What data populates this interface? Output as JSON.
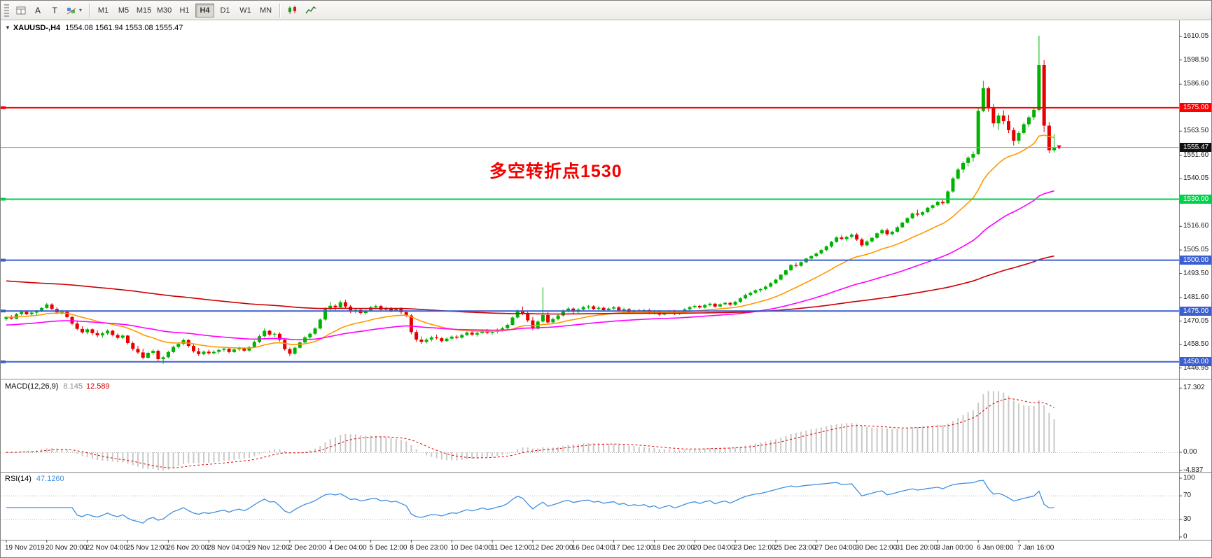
{
  "toolbar": {
    "cursor_label": "A",
    "text_label": "T",
    "timeframes": [
      "M1",
      "M5",
      "M15",
      "M30",
      "H1",
      "H4",
      "D1",
      "W1",
      "MN"
    ],
    "active_timeframe": "H4"
  },
  "chart": {
    "symbol_timeframe": "XAUUSD-,H4",
    "ohlc": "1554.08 1561.94 1553.08 1555.47",
    "annotation": {
      "text": "多空转折点1530",
      "color": "#f30000"
    },
    "current_price": {
      "label": "1555.47",
      "price": 1555.47,
      "color": "#111111"
    },
    "levels": [
      {
        "label": "1575.00",
        "price": 1575.0,
        "color": "#ff0000",
        "width": 2
      },
      {
        "label": "1530.00",
        "price": 1530.0,
        "color": "#00d24b",
        "width": 2
      },
      {
        "label": "1500.00",
        "price": 1500.0,
        "color": "#3c5fd0",
        "width": 2
      },
      {
        "label": "1475.00",
        "price": 1475.0,
        "color": "#3c5fd0",
        "width": 2
      },
      {
        "label": "1450.00",
        "price": 1450.0,
        "color": "#3c5fd0",
        "width": 2
      }
    ],
    "price_axis": {
      "labels": [
        "1610.05",
        "1598.50",
        "1586.60",
        "1563.50",
        "1551.60",
        "1540.05",
        "1528.50",
        "1516.60",
        "1505.05",
        "1493.50",
        "1481.60",
        "1470.05",
        "1458.50",
        "1446.95"
      ]
    }
  },
  "macd": {
    "name": "MACD(12,26,9)",
    "value": "8.145",
    "signal": "12.589",
    "axis": [
      "17.302",
      "0.00",
      "-4.837"
    ]
  },
  "rsi": {
    "name": "RSI(14)",
    "value": "47.1260",
    "axis": [
      "100",
      "70",
      "30",
      "0"
    ]
  },
  "time_axis": {
    "labels": [
      "19 Nov 2019",
      "20 Nov 20:00",
      "22 Nov 04:00",
      "25 Nov 12:00",
      "26 Nov 20:00",
      "28 Nov 04:00",
      "29 Nov 12:00",
      "2 Dec 20:00",
      "4 Dec 04:00",
      "5 Dec 12:00",
      "8 Dec 23:00",
      "10 Dec 04:00",
      "11 Dec 12:00",
      "12 Dec 20:00",
      "16 Dec 04:00",
      "17 Dec 12:00",
      "18 Dec 20:00",
      "20 Dec 04:00",
      "23 Dec 12:00",
      "25 Dec 23:00",
      "27 Dec 04:00",
      "30 Dec 12:00",
      "31 Dec 20:00",
      "3 Jan 00:00",
      "6 Jan 08:00",
      "7 Jan 16:00"
    ]
  },
  "chart_data": {
    "type": "candlestick",
    "symbol": "XAUUSD-",
    "timeframe": "H4",
    "title": "XAUUSD-,H4 1554.08 1561.94 1553.08 1555.47",
    "colors": {
      "up": "#00b300",
      "down": "#e80000"
    },
    "overlays": [
      {
        "name": "ma-fast-orange",
        "period": 20,
        "seed": null,
        "color": "#ff9900"
      },
      {
        "name": "ma-mid-magenta",
        "period": 60,
        "seed": 1468,
        "color": "#ff00ff"
      },
      {
        "name": "ma-slow-red",
        "period": 190,
        "seed": 1490,
        "color": "#cc0000"
      }
    ],
    "indicators": {
      "macd": {
        "fast": 12,
        "slow": 26,
        "signal": 9,
        "ymax": 17.302,
        "ymin": -4.837
      },
      "rsi": {
        "period": 14,
        "levels": [
          70,
          30
        ]
      }
    },
    "candles": [
      [
        1471.0,
        1472.5,
        1470.2,
        1472.0
      ],
      [
        1472.0,
        1473.0,
        1470.8,
        1471.2
      ],
      [
        1471.2,
        1474.0,
        1471.0,
        1473.5
      ],
      [
        1473.5,
        1475.0,
        1472.8,
        1474.6
      ],
      [
        1474.6,
        1475.2,
        1473.0,
        1473.4
      ],
      [
        1473.4,
        1474.8,
        1472.6,
        1474.2
      ],
      [
        1474.2,
        1475.5,
        1473.0,
        1475.0
      ],
      [
        1475.0,
        1477.0,
        1474.4,
        1476.5
      ],
      [
        1476.5,
        1479.0,
        1476.0,
        1478.2
      ],
      [
        1478.2,
        1478.8,
        1475.5,
        1476.0
      ],
      [
        1476.0,
        1476.8,
        1473.5,
        1474.3
      ],
      [
        1474.3,
        1475.6,
        1473.2,
        1474.6
      ],
      [
        1474.6,
        1475.0,
        1471.5,
        1472.0
      ],
      [
        1472.0,
        1472.6,
        1468.0,
        1468.8
      ],
      [
        1468.8,
        1470.0,
        1465.5,
        1466.2
      ],
      [
        1466.2,
        1467.5,
        1463.8,
        1464.5
      ],
      [
        1464.5,
        1466.8,
        1463.5,
        1466.0
      ],
      [
        1466.0,
        1466.5,
        1463.0,
        1464.1
      ],
      [
        1464.1,
        1465.5,
        1462.0,
        1463.0
      ],
      [
        1463.0,
        1464.8,
        1461.8,
        1464.0
      ],
      [
        1464.0,
        1466.0,
        1463.2,
        1465.3
      ],
      [
        1465.3,
        1465.8,
        1462.5,
        1463.2
      ],
      [
        1463.2,
        1464.0,
        1461.0,
        1461.8
      ],
      [
        1461.8,
        1463.5,
        1461.2,
        1462.9
      ],
      [
        1462.9,
        1463.2,
        1458.5,
        1459.2
      ],
      [
        1459.2,
        1460.0,
        1455.5,
        1456.3
      ],
      [
        1456.3,
        1457.8,
        1453.8,
        1454.6
      ],
      [
        1454.6,
        1456.5,
        1451.2,
        1452.0
      ],
      [
        1452.0,
        1455.0,
        1451.5,
        1454.4
      ],
      [
        1454.4,
        1456.2,
        1453.5,
        1455.4
      ],
      [
        1455.4,
        1456.0,
        1450.5,
        1451.3
      ],
      [
        1451.3,
        1452.8,
        1449.0,
        1452.2
      ],
      [
        1452.2,
        1455.5,
        1451.8,
        1454.8
      ],
      [
        1454.8,
        1458.0,
        1454.2,
        1457.3
      ],
      [
        1457.3,
        1459.5,
        1456.5,
        1458.8
      ],
      [
        1458.8,
        1461.5,
        1458.0,
        1460.7
      ],
      [
        1460.7,
        1461.2,
        1457.0,
        1457.8
      ],
      [
        1457.8,
        1458.5,
        1454.5,
        1455.2
      ],
      [
        1455.2,
        1456.8,
        1453.0,
        1453.8
      ],
      [
        1453.8,
        1455.6,
        1453.2,
        1455.0
      ],
      [
        1455.0,
        1456.0,
        1453.5,
        1454.2
      ],
      [
        1454.2,
        1455.8,
        1453.6,
        1454.9
      ],
      [
        1454.9,
        1456.5,
        1454.0,
        1455.8
      ],
      [
        1455.8,
        1457.2,
        1455.0,
        1456.4
      ],
      [
        1456.4,
        1457.0,
        1454.2,
        1454.8
      ],
      [
        1454.8,
        1456.6,
        1454.4,
        1456.1
      ],
      [
        1456.1,
        1457.5,
        1455.2,
        1456.8
      ],
      [
        1456.8,
        1457.2,
        1454.8,
        1455.5
      ],
      [
        1455.5,
        1457.8,
        1455.0,
        1457.2
      ],
      [
        1457.2,
        1460.5,
        1456.8,
        1459.8
      ],
      [
        1459.8,
        1463.5,
        1459.2,
        1462.6
      ],
      [
        1462.6,
        1466.4,
        1462.0,
        1465.3
      ],
      [
        1465.3,
        1465.8,
        1462.5,
        1463.4
      ],
      [
        1463.4,
        1464.6,
        1462.2,
        1463.8
      ],
      [
        1463.8,
        1464.5,
        1460.0,
        1460.8
      ],
      [
        1460.8,
        1461.5,
        1455.5,
        1456.2
      ],
      [
        1456.2,
        1457.0,
        1452.8,
        1454.0
      ],
      [
        1454.0,
        1457.5,
        1453.4,
        1456.9
      ],
      [
        1456.9,
        1460.2,
        1456.4,
        1459.5
      ],
      [
        1459.5,
        1462.8,
        1459.0,
        1462.0
      ],
      [
        1462.0,
        1464.5,
        1461.2,
        1463.8
      ],
      [
        1463.8,
        1467.0,
        1463.2,
        1466.4
      ],
      [
        1466.4,
        1471.5,
        1466.0,
        1470.8
      ],
      [
        1470.8,
        1476.8,
        1470.2,
        1475.9
      ],
      [
        1475.9,
        1479.5,
        1475.0,
        1477.6
      ],
      [
        1477.6,
        1478.4,
        1475.2,
        1476.8
      ],
      [
        1476.8,
        1480.2,
        1476.2,
        1479.3
      ],
      [
        1479.3,
        1480.5,
        1476.5,
        1477.2
      ],
      [
        1477.2,
        1478.0,
        1474.0,
        1474.8
      ],
      [
        1474.8,
        1476.5,
        1473.8,
        1475.6
      ],
      [
        1475.6,
        1476.2,
        1473.2,
        1474.0
      ],
      [
        1474.0,
        1475.8,
        1473.4,
        1475.1
      ],
      [
        1475.1,
        1477.5,
        1474.6,
        1476.8
      ],
      [
        1476.8,
        1478.2,
        1475.8,
        1477.4
      ],
      [
        1477.4,
        1478.0,
        1475.0,
        1475.6
      ],
      [
        1475.6,
        1477.2,
        1474.8,
        1476.5
      ],
      [
        1476.5,
        1477.0,
        1474.4,
        1475.2
      ],
      [
        1475.2,
        1476.6,
        1474.6,
        1476.0
      ],
      [
        1476.0,
        1476.8,
        1473.5,
        1474.4
      ],
      [
        1474.4,
        1475.2,
        1472.0,
        1472.8
      ],
      [
        1472.8,
        1473.5,
        1463.5,
        1464.6
      ],
      [
        1464.6,
        1465.8,
        1459.8,
        1460.9
      ],
      [
        1460.9,
        1462.5,
        1458.8,
        1459.8
      ],
      [
        1459.8,
        1461.6,
        1459.0,
        1460.9
      ],
      [
        1460.9,
        1462.8,
        1460.0,
        1462.0
      ],
      [
        1462.0,
        1463.4,
        1461.0,
        1461.6
      ],
      [
        1461.6,
        1462.2,
        1459.5,
        1460.2
      ],
      [
        1460.2,
        1462.0,
        1459.8,
        1461.4
      ],
      [
        1461.4,
        1463.0,
        1460.8,
        1462.4
      ],
      [
        1462.4,
        1463.2,
        1461.2,
        1461.9
      ],
      [
        1461.9,
        1463.8,
        1461.4,
        1463.2
      ],
      [
        1463.2,
        1465.0,
        1462.6,
        1464.4
      ],
      [
        1464.4,
        1465.2,
        1462.8,
        1463.4
      ],
      [
        1463.4,
        1464.8,
        1462.4,
        1464.2
      ],
      [
        1464.2,
        1466.0,
        1463.8,
        1465.4
      ],
      [
        1465.4,
        1466.2,
        1463.6,
        1464.3
      ],
      [
        1464.3,
        1465.5,
        1463.4,
        1464.8
      ],
      [
        1464.8,
        1466.4,
        1464.0,
        1465.8
      ],
      [
        1465.8,
        1467.2,
        1465.0,
        1466.5
      ],
      [
        1466.5,
        1468.8,
        1466.0,
        1468.2
      ],
      [
        1468.2,
        1472.5,
        1467.8,
        1471.8
      ],
      [
        1471.8,
        1475.8,
        1471.2,
        1475.0
      ],
      [
        1475.0,
        1477.2,
        1473.0,
        1474.0
      ],
      [
        1474.0,
        1474.8,
        1469.5,
        1470.4
      ],
      [
        1470.4,
        1472.0,
        1465.5,
        1466.3
      ],
      [
        1466.3,
        1470.5,
        1465.8,
        1469.8
      ],
      [
        1469.8,
        1486.6,
        1469.2,
        1473.0
      ],
      [
        1473.0,
        1474.5,
        1468.5,
        1469.4
      ],
      [
        1469.4,
        1471.8,
        1468.8,
        1471.0
      ],
      [
        1471.0,
        1473.5,
        1470.4,
        1472.8
      ],
      [
        1472.8,
        1475.8,
        1472.2,
        1475.2
      ],
      [
        1475.2,
        1477.0,
        1474.4,
        1476.2
      ],
      [
        1476.2,
        1476.8,
        1473.8,
        1474.6
      ],
      [
        1474.6,
        1476.4,
        1474.0,
        1475.7
      ],
      [
        1475.7,
        1477.6,
        1475.2,
        1476.9
      ],
      [
        1476.9,
        1478.0,
        1476.0,
        1477.3
      ],
      [
        1477.3,
        1477.9,
        1475.4,
        1476.0
      ],
      [
        1476.0,
        1477.4,
        1475.3,
        1476.6
      ],
      [
        1476.6,
        1477.2,
        1474.8,
        1475.4
      ],
      [
        1475.4,
        1476.8,
        1474.9,
        1476.2
      ],
      [
        1476.2,
        1477.5,
        1475.6,
        1476.8
      ],
      [
        1476.8,
        1477.4,
        1474.6,
        1475.2
      ],
      [
        1475.2,
        1476.6,
        1474.4,
        1475.9
      ],
      [
        1475.9,
        1476.5,
        1473.8,
        1474.4
      ],
      [
        1474.4,
        1475.8,
        1473.9,
        1475.3
      ],
      [
        1475.3,
        1476.0,
        1474.0,
        1474.7
      ],
      [
        1474.7,
        1476.0,
        1474.0,
        1475.4
      ],
      [
        1475.4,
        1476.2,
        1473.4,
        1474.0
      ],
      [
        1474.0,
        1475.5,
        1473.2,
        1474.8
      ],
      [
        1474.8,
        1475.4,
        1472.6,
        1473.2
      ],
      [
        1473.2,
        1474.8,
        1472.8,
        1474.3
      ],
      [
        1474.3,
        1475.6,
        1473.6,
        1475.0
      ],
      [
        1475.0,
        1475.6,
        1473.0,
        1473.6
      ],
      [
        1473.6,
        1475.2,
        1473.1,
        1474.6
      ],
      [
        1474.6,
        1476.4,
        1474.2,
        1475.8
      ],
      [
        1475.8,
        1477.5,
        1475.2,
        1476.9
      ],
      [
        1476.9,
        1478.2,
        1476.2,
        1477.5
      ],
      [
        1477.5,
        1478.0,
        1476.0,
        1476.7
      ],
      [
        1476.7,
        1478.5,
        1476.2,
        1477.9
      ],
      [
        1477.9,
        1479.2,
        1477.2,
        1478.6
      ],
      [
        1478.6,
        1479.0,
        1476.6,
        1477.2
      ],
      [
        1477.2,
        1478.8,
        1476.8,
        1478.3
      ],
      [
        1478.3,
        1479.6,
        1477.8,
        1479.0
      ],
      [
        1479.0,
        1479.5,
        1477.4,
        1478.1
      ],
      [
        1478.1,
        1480.0,
        1477.6,
        1479.5
      ],
      [
        1479.5,
        1481.8,
        1479.0,
        1481.2
      ],
      [
        1481.2,
        1483.5,
        1480.8,
        1482.9
      ],
      [
        1482.9,
        1484.6,
        1482.2,
        1484.0
      ],
      [
        1484.0,
        1485.8,
        1483.4,
        1485.2
      ],
      [
        1485.2,
        1486.4,
        1484.2,
        1485.8
      ],
      [
        1485.8,
        1487.5,
        1485.2,
        1487.0
      ],
      [
        1487.0,
        1489.2,
        1486.6,
        1488.7
      ],
      [
        1488.7,
        1491.0,
        1488.2,
        1490.4
      ],
      [
        1490.4,
        1493.2,
        1490.0,
        1492.8
      ],
      [
        1492.8,
        1495.5,
        1492.2,
        1495.0
      ],
      [
        1495.0,
        1498.2,
        1494.6,
        1497.6
      ],
      [
        1497.6,
        1498.8,
        1496.4,
        1497.2
      ],
      [
        1497.2,
        1499.5,
        1496.8,
        1499.0
      ],
      [
        1499.0,
        1501.2,
        1498.6,
        1500.8
      ],
      [
        1500.8,
        1502.5,
        1500.2,
        1502.0
      ],
      [
        1502.0,
        1503.8,
        1501.4,
        1503.3
      ],
      [
        1503.3,
        1505.5,
        1502.8,
        1505.0
      ],
      [
        1505.0,
        1507.2,
        1504.4,
        1506.8
      ],
      [
        1506.8,
        1509.5,
        1506.2,
        1509.0
      ],
      [
        1509.0,
        1511.8,
        1508.6,
        1511.2
      ],
      [
        1511.2,
        1512.5,
        1509.8,
        1510.4
      ],
      [
        1510.4,
        1512.0,
        1509.4,
        1511.5
      ],
      [
        1511.5,
        1513.2,
        1510.8,
        1512.6
      ],
      [
        1512.6,
        1513.4,
        1509.5,
        1510.2
      ],
      [
        1510.2,
        1511.0,
        1506.5,
        1507.3
      ],
      [
        1507.3,
        1509.8,
        1506.8,
        1509.2
      ],
      [
        1509.2,
        1511.5,
        1508.6,
        1511.0
      ],
      [
        1511.0,
        1513.8,
        1510.4,
        1513.2
      ],
      [
        1513.2,
        1515.5,
        1512.6,
        1514.8
      ],
      [
        1514.8,
        1515.6,
        1512.0,
        1512.8
      ],
      [
        1512.8,
        1514.5,
        1512.2,
        1514.0
      ],
      [
        1514.0,
        1516.8,
        1513.5,
        1516.2
      ],
      [
        1516.2,
        1519.0,
        1515.8,
        1518.5
      ],
      [
        1518.5,
        1521.2,
        1518.0,
        1520.7
      ],
      [
        1520.7,
        1523.5,
        1520.2,
        1523.0
      ],
      [
        1523.0,
        1524.8,
        1521.5,
        1522.4
      ],
      [
        1522.4,
        1524.0,
        1521.8,
        1523.6
      ],
      [
        1523.6,
        1526.2,
        1523.2,
        1525.8
      ],
      [
        1525.8,
        1527.5,
        1525.0,
        1527.0
      ],
      [
        1527.0,
        1529.2,
        1526.4,
        1528.7
      ],
      [
        1528.7,
        1530.0,
        1527.2,
        1528.0
      ],
      [
        1528.0,
        1534.5,
        1527.6,
        1533.8
      ],
      [
        1533.8,
        1541.0,
        1533.2,
        1540.2
      ],
      [
        1540.2,
        1545.5,
        1539.6,
        1544.6
      ],
      [
        1544.6,
        1548.8,
        1543.0,
        1547.8
      ],
      [
        1547.8,
        1551.2,
        1546.2,
        1550.4
      ],
      [
        1550.4,
        1553.5,
        1548.5,
        1552.2
      ],
      [
        1552.2,
        1575.0,
        1551.8,
        1573.5
      ],
      [
        1573.5,
        1588.2,
        1572.8,
        1584.6
      ],
      [
        1584.6,
        1585.4,
        1573.0,
        1575.2
      ],
      [
        1575.2,
        1577.0,
        1565.5,
        1567.3
      ],
      [
        1567.3,
        1572.5,
        1564.0,
        1571.2
      ],
      [
        1571.2,
        1573.8,
        1566.8,
        1568.4
      ],
      [
        1568.4,
        1571.5,
        1562.5,
        1564.0
      ],
      [
        1564.0,
        1565.2,
        1556.4,
        1558.8
      ],
      [
        1558.8,
        1563.5,
        1557.2,
        1562.6
      ],
      [
        1562.6,
        1567.8,
        1561.8,
        1566.9
      ],
      [
        1566.9,
        1571.2,
        1565.4,
        1570.3
      ],
      [
        1570.3,
        1574.8,
        1569.0,
        1574.0
      ],
      [
        1574.0,
        1610.5,
        1573.2,
        1596.0
      ],
      [
        1596.0,
        1598.5,
        1563.0,
        1566.2
      ],
      [
        1566.2,
        1568.0,
        1552.6,
        1554.1
      ],
      [
        1554.08,
        1561.94,
        1553.08,
        1555.47
      ]
    ]
  }
}
